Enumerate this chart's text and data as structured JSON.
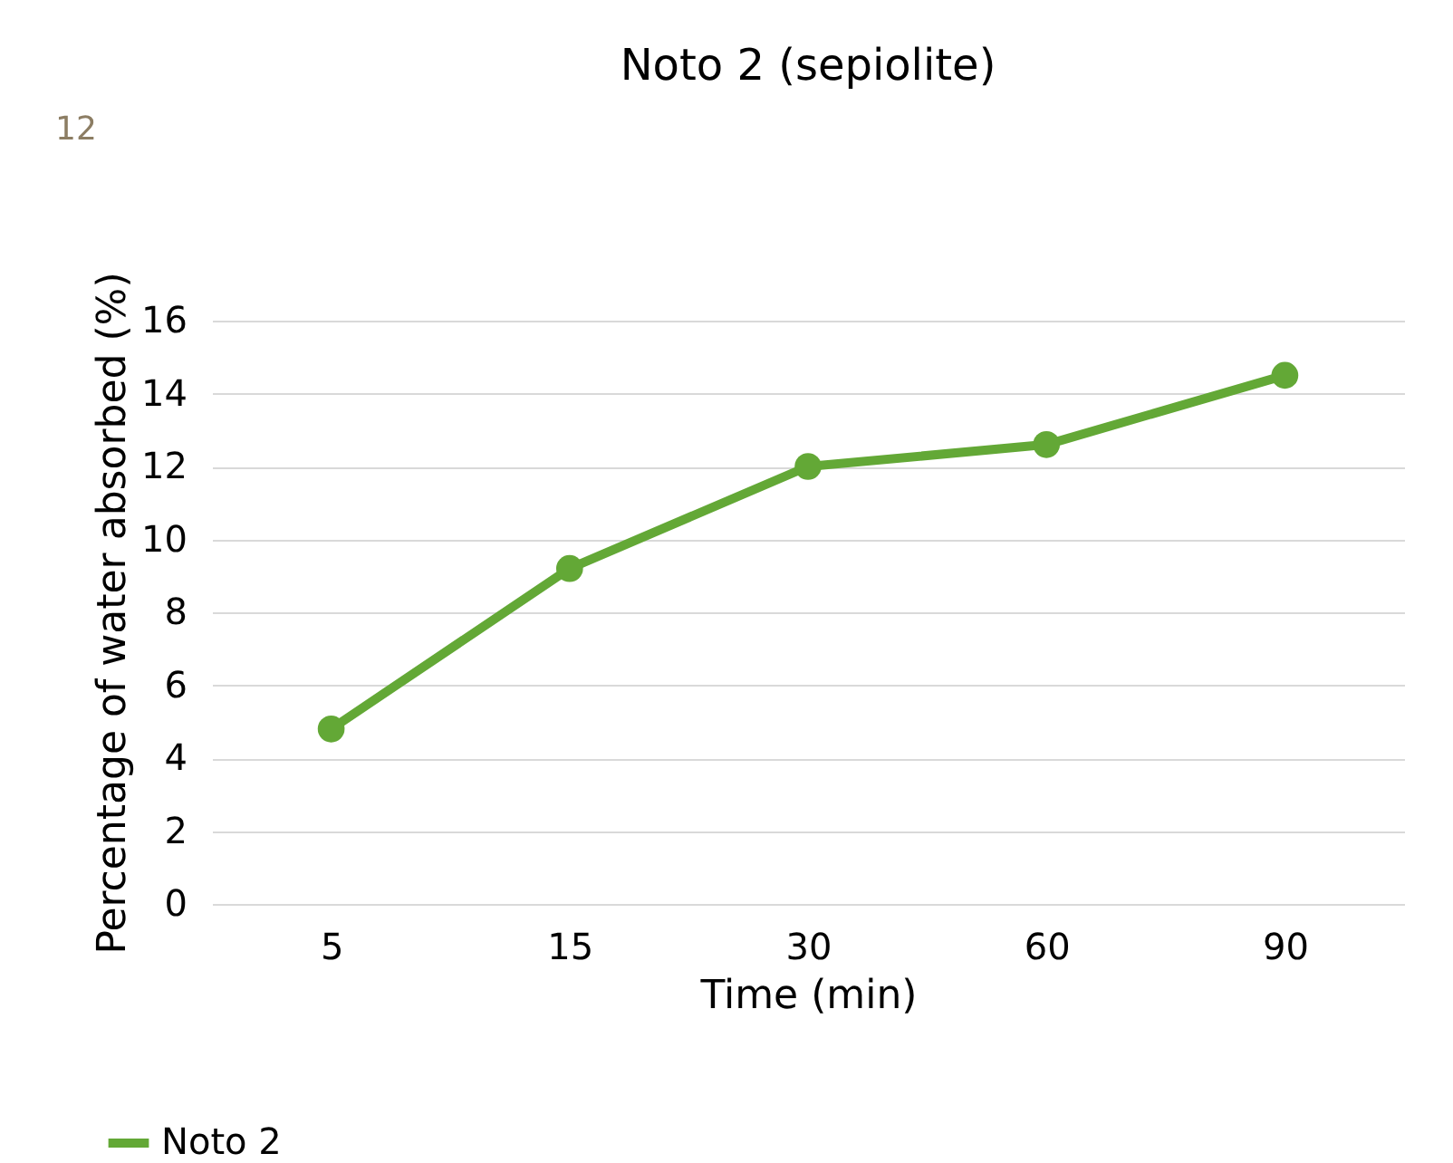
{
  "chart_data": {
    "type": "line",
    "title": "Noto 2 (sepiolite)",
    "xlabel": "Time (min)",
    "ylabel": "Percentage of water absorbed (%)",
    "categories": [
      "5",
      "15",
      "30",
      "60",
      "90"
    ],
    "series": [
      {
        "name": "Noto 2",
        "color": "#63a836",
        "values": [
          4.8,
          9.2,
          12.0,
          12.6,
          14.5
        ]
      }
    ],
    "ylim": [
      0,
      16
    ],
    "yticks": [
      0,
      2,
      4,
      6,
      8,
      10,
      12,
      14,
      16
    ],
    "grid": "y",
    "legend": "bottom left",
    "marker": "circle",
    "line_style": "solid",
    "annotations": [
      "12"
    ]
  }
}
